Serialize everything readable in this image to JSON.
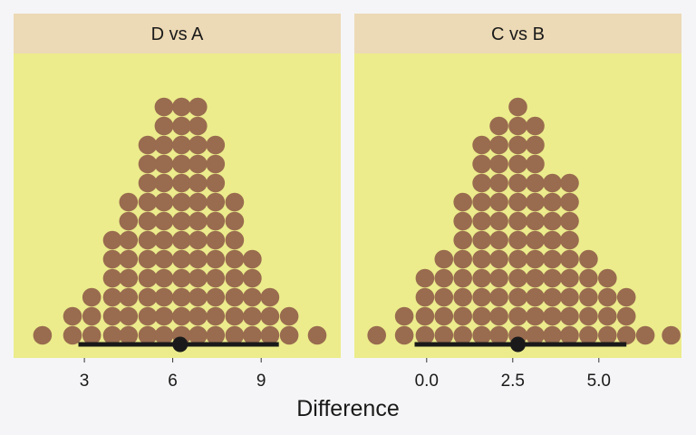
{
  "chart_data": {
    "type": "dotplot",
    "xlabel": "Difference",
    "colors": {
      "page_background": "#f5f5f7",
      "panel_background": "#ecec8c",
      "strip_background": "#ecd9b5",
      "dot_fill": "#996b4f",
      "interval": "#1a1a1a"
    },
    "panels": [
      {
        "title": "D vs A",
        "xlim": [
          0.6,
          11.7
        ],
        "xticks": [
          3,
          6,
          9
        ],
        "xtick_labels": [
          "3",
          "6",
          "9"
        ],
        "interval": {
          "low": 2.8,
          "high": 9.6,
          "point": 6.25
        },
        "columns": [
          {
            "x": 1.58,
            "count": 1
          },
          {
            "x": 2.6,
            "count": 2
          },
          {
            "x": 3.25,
            "count": 3
          },
          {
            "x": 3.95,
            "count": 6
          },
          {
            "x": 4.5,
            "count": 8
          },
          {
            "x": 5.15,
            "count": 11
          },
          {
            "x": 5.7,
            "count": 13
          },
          {
            "x": 6.3,
            "count": 13
          },
          {
            "x": 6.85,
            "count": 13
          },
          {
            "x": 7.45,
            "count": 11
          },
          {
            "x": 8.1,
            "count": 8
          },
          {
            "x": 8.7,
            "count": 5
          },
          {
            "x": 9.3,
            "count": 3
          },
          {
            "x": 9.95,
            "count": 2
          },
          {
            "x": 10.9,
            "count": 1
          }
        ]
      },
      {
        "title": "C vs B",
        "xlim": [
          -2.1,
          7.4
        ],
        "xticks": [
          0,
          2.5,
          5
        ],
        "xtick_labels": [
          "0.0",
          "2.5",
          "5.0"
        ],
        "interval": {
          "low": -0.35,
          "high": 5.8,
          "point": 2.65
        },
        "columns": [
          {
            "x": -1.45,
            "count": 1
          },
          {
            "x": -0.65,
            "count": 2
          },
          {
            "x": -0.05,
            "count": 4
          },
          {
            "x": 0.5,
            "count": 5
          },
          {
            "x": 1.05,
            "count": 8
          },
          {
            "x": 1.6,
            "count": 11
          },
          {
            "x": 2.1,
            "count": 12
          },
          {
            "x": 2.65,
            "count": 13
          },
          {
            "x": 3.15,
            "count": 12
          },
          {
            "x": 3.65,
            "count": 9
          },
          {
            "x": 4.15,
            "count": 9
          },
          {
            "x": 4.7,
            "count": 5
          },
          {
            "x": 5.25,
            "count": 4
          },
          {
            "x": 5.8,
            "count": 3
          },
          {
            "x": 6.35,
            "count": 1
          },
          {
            "x": 7.1,
            "count": 1
          }
        ]
      }
    ]
  }
}
